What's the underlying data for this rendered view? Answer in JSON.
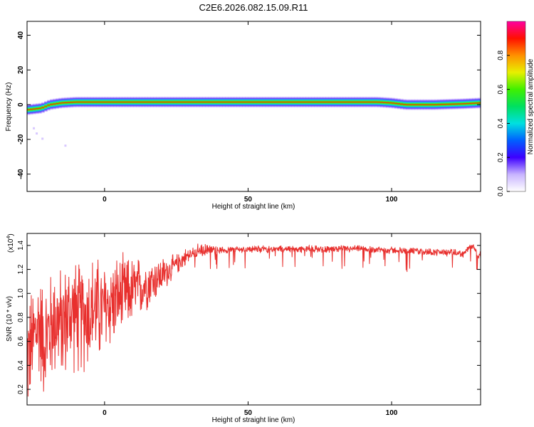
{
  "title": "C2E6.2026.082.15.09.R11",
  "chart_data": [
    {
      "type": "heatmap",
      "title": "C2E6.2026.082.15.09.R11",
      "xlabel": "Height of straight line (km)",
      "ylabel": "Frequency (Hz)",
      "xlim": [
        -27,
        131
      ],
      "ylim": [
        -50,
        48
      ],
      "xticks": [
        0,
        50,
        100
      ],
      "yticks": [
        -40,
        -20,
        0,
        20,
        40
      ],
      "band_center_hz": [
        [
          -27,
          -3
        ],
        [
          -22,
          -2
        ],
        [
          -19,
          0
        ],
        [
          -15,
          1
        ],
        [
          -10,
          1.5
        ],
        [
          0,
          1.5
        ],
        [
          20,
          1.5
        ],
        [
          50,
          1.5
        ],
        [
          80,
          1.5
        ],
        [
          95,
          1.5
        ],
        [
          100,
          1
        ],
        [
          105,
          0
        ],
        [
          115,
          0
        ],
        [
          125,
          0.5
        ],
        [
          131,
          1
        ]
      ],
      "colorbar": {
        "label": "Normalized spectral amplitude",
        "range": [
          0,
          1
        ],
        "ticks": [
          "0.0",
          "0.2",
          "0.4",
          "0.6",
          "0.8"
        ]
      }
    },
    {
      "type": "line",
      "xlabel": "Height of straight line (km)",
      "ylabel": "SNR (10 * v/v)",
      "ylabel_scale": "(x10",
      "ylabel_scale_exp": "4",
      "ylabel_scale_close": ")",
      "xlim": [
        -27,
        131
      ],
      "ylim": [
        0.07,
        1.5
      ],
      "xticks": [
        0,
        50,
        100
      ],
      "yticks": [
        "0.2",
        "0.4",
        "0.6",
        "0.8",
        "1.0",
        "1.2",
        "1.4"
      ],
      "series": [
        {
          "name": "SNR",
          "color": "#e8302e",
          "x": [
            -27,
            -25,
            -23,
            -21,
            -19,
            -17,
            -15,
            -13,
            -11,
            -9,
            -7,
            -5,
            -3,
            -1,
            1,
            4,
            8,
            12,
            16,
            20,
            24,
            28,
            32,
            36,
            40,
            50,
            60,
            70,
            80,
            90,
            100,
            110,
            120,
            125,
            128,
            130,
            131
          ],
          "y": [
            0.45,
            0.6,
            0.75,
            0.6,
            0.7,
            0.8,
            0.72,
            0.8,
            0.85,
            0.78,
            0.82,
            0.85,
            0.88,
            0.84,
            0.9,
            0.95,
            1.0,
            1.05,
            1.1,
            1.15,
            1.22,
            1.3,
            1.35,
            1.36,
            1.36,
            1.37,
            1.37,
            1.37,
            1.37,
            1.37,
            1.36,
            1.35,
            1.34,
            1.33,
            1.4,
            1.32,
            1.32
          ]
        }
      ]
    }
  ]
}
